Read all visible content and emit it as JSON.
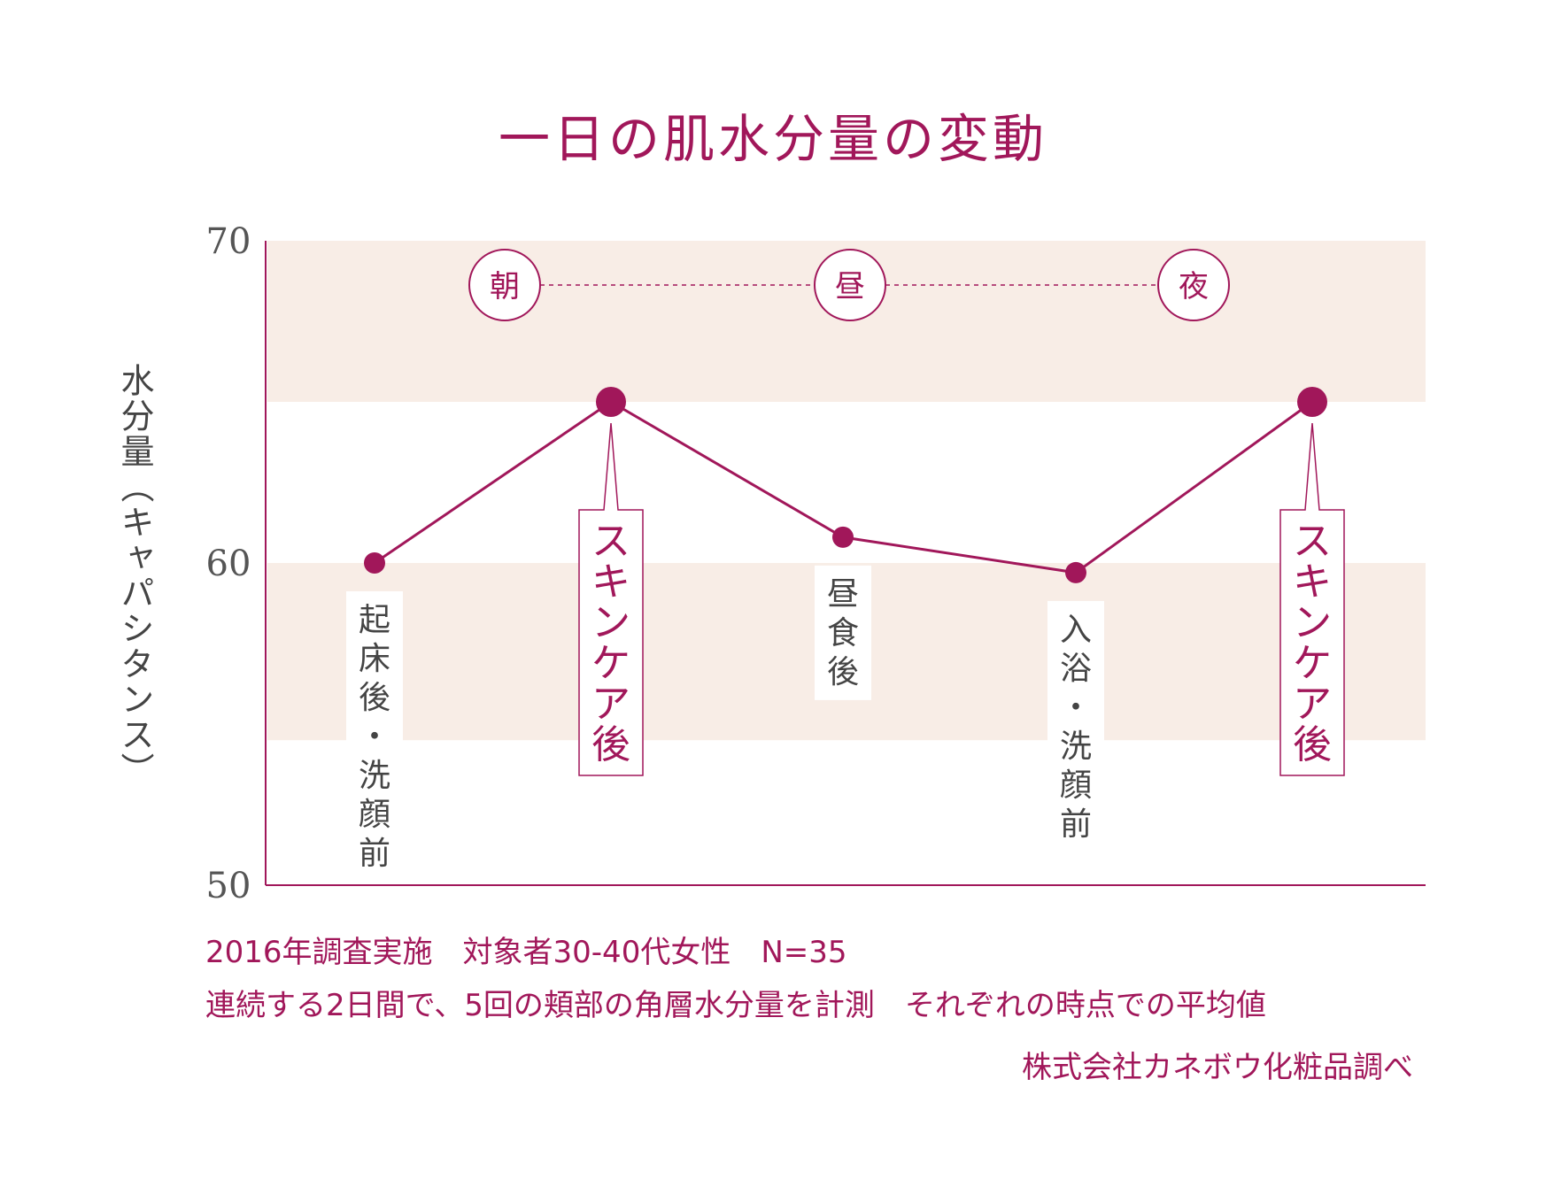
{
  "chart_data": {
    "type": "line",
    "title": "一日の肌水分量の変動",
    "ylabel": "水分量（キャパシタンス）",
    "ylim": [
      50,
      70
    ],
    "yticks": [
      "50",
      "60",
      "70"
    ],
    "categories": [
      "起床後・洗顔前",
      "スキンケア後",
      "昼食後",
      "入浴・洗顔前",
      "スキンケア後"
    ],
    "values": [
      60.0,
      65.0,
      60.8,
      59.7,
      65.0
    ],
    "highlight": [
      false,
      true,
      false,
      false,
      true
    ],
    "periods": [
      "朝",
      "昼",
      "夜"
    ],
    "bands": [
      [
        54.5,
        60.0
      ],
      [
        65.0,
        70.0
      ]
    ]
  },
  "notes": [
    "2016年調査実施　対象者30-40代女性　N=35",
    "連続する2日間で、5回の頬部の角層水分量を計測　それぞれの時点での平均値"
  ],
  "credit": "株式会社カネボウ化粧品調べ",
  "colors": {
    "accent": "#a1175a",
    "band": "#f8ede6",
    "axis_text": "#555555",
    "label_text": "#444444"
  }
}
